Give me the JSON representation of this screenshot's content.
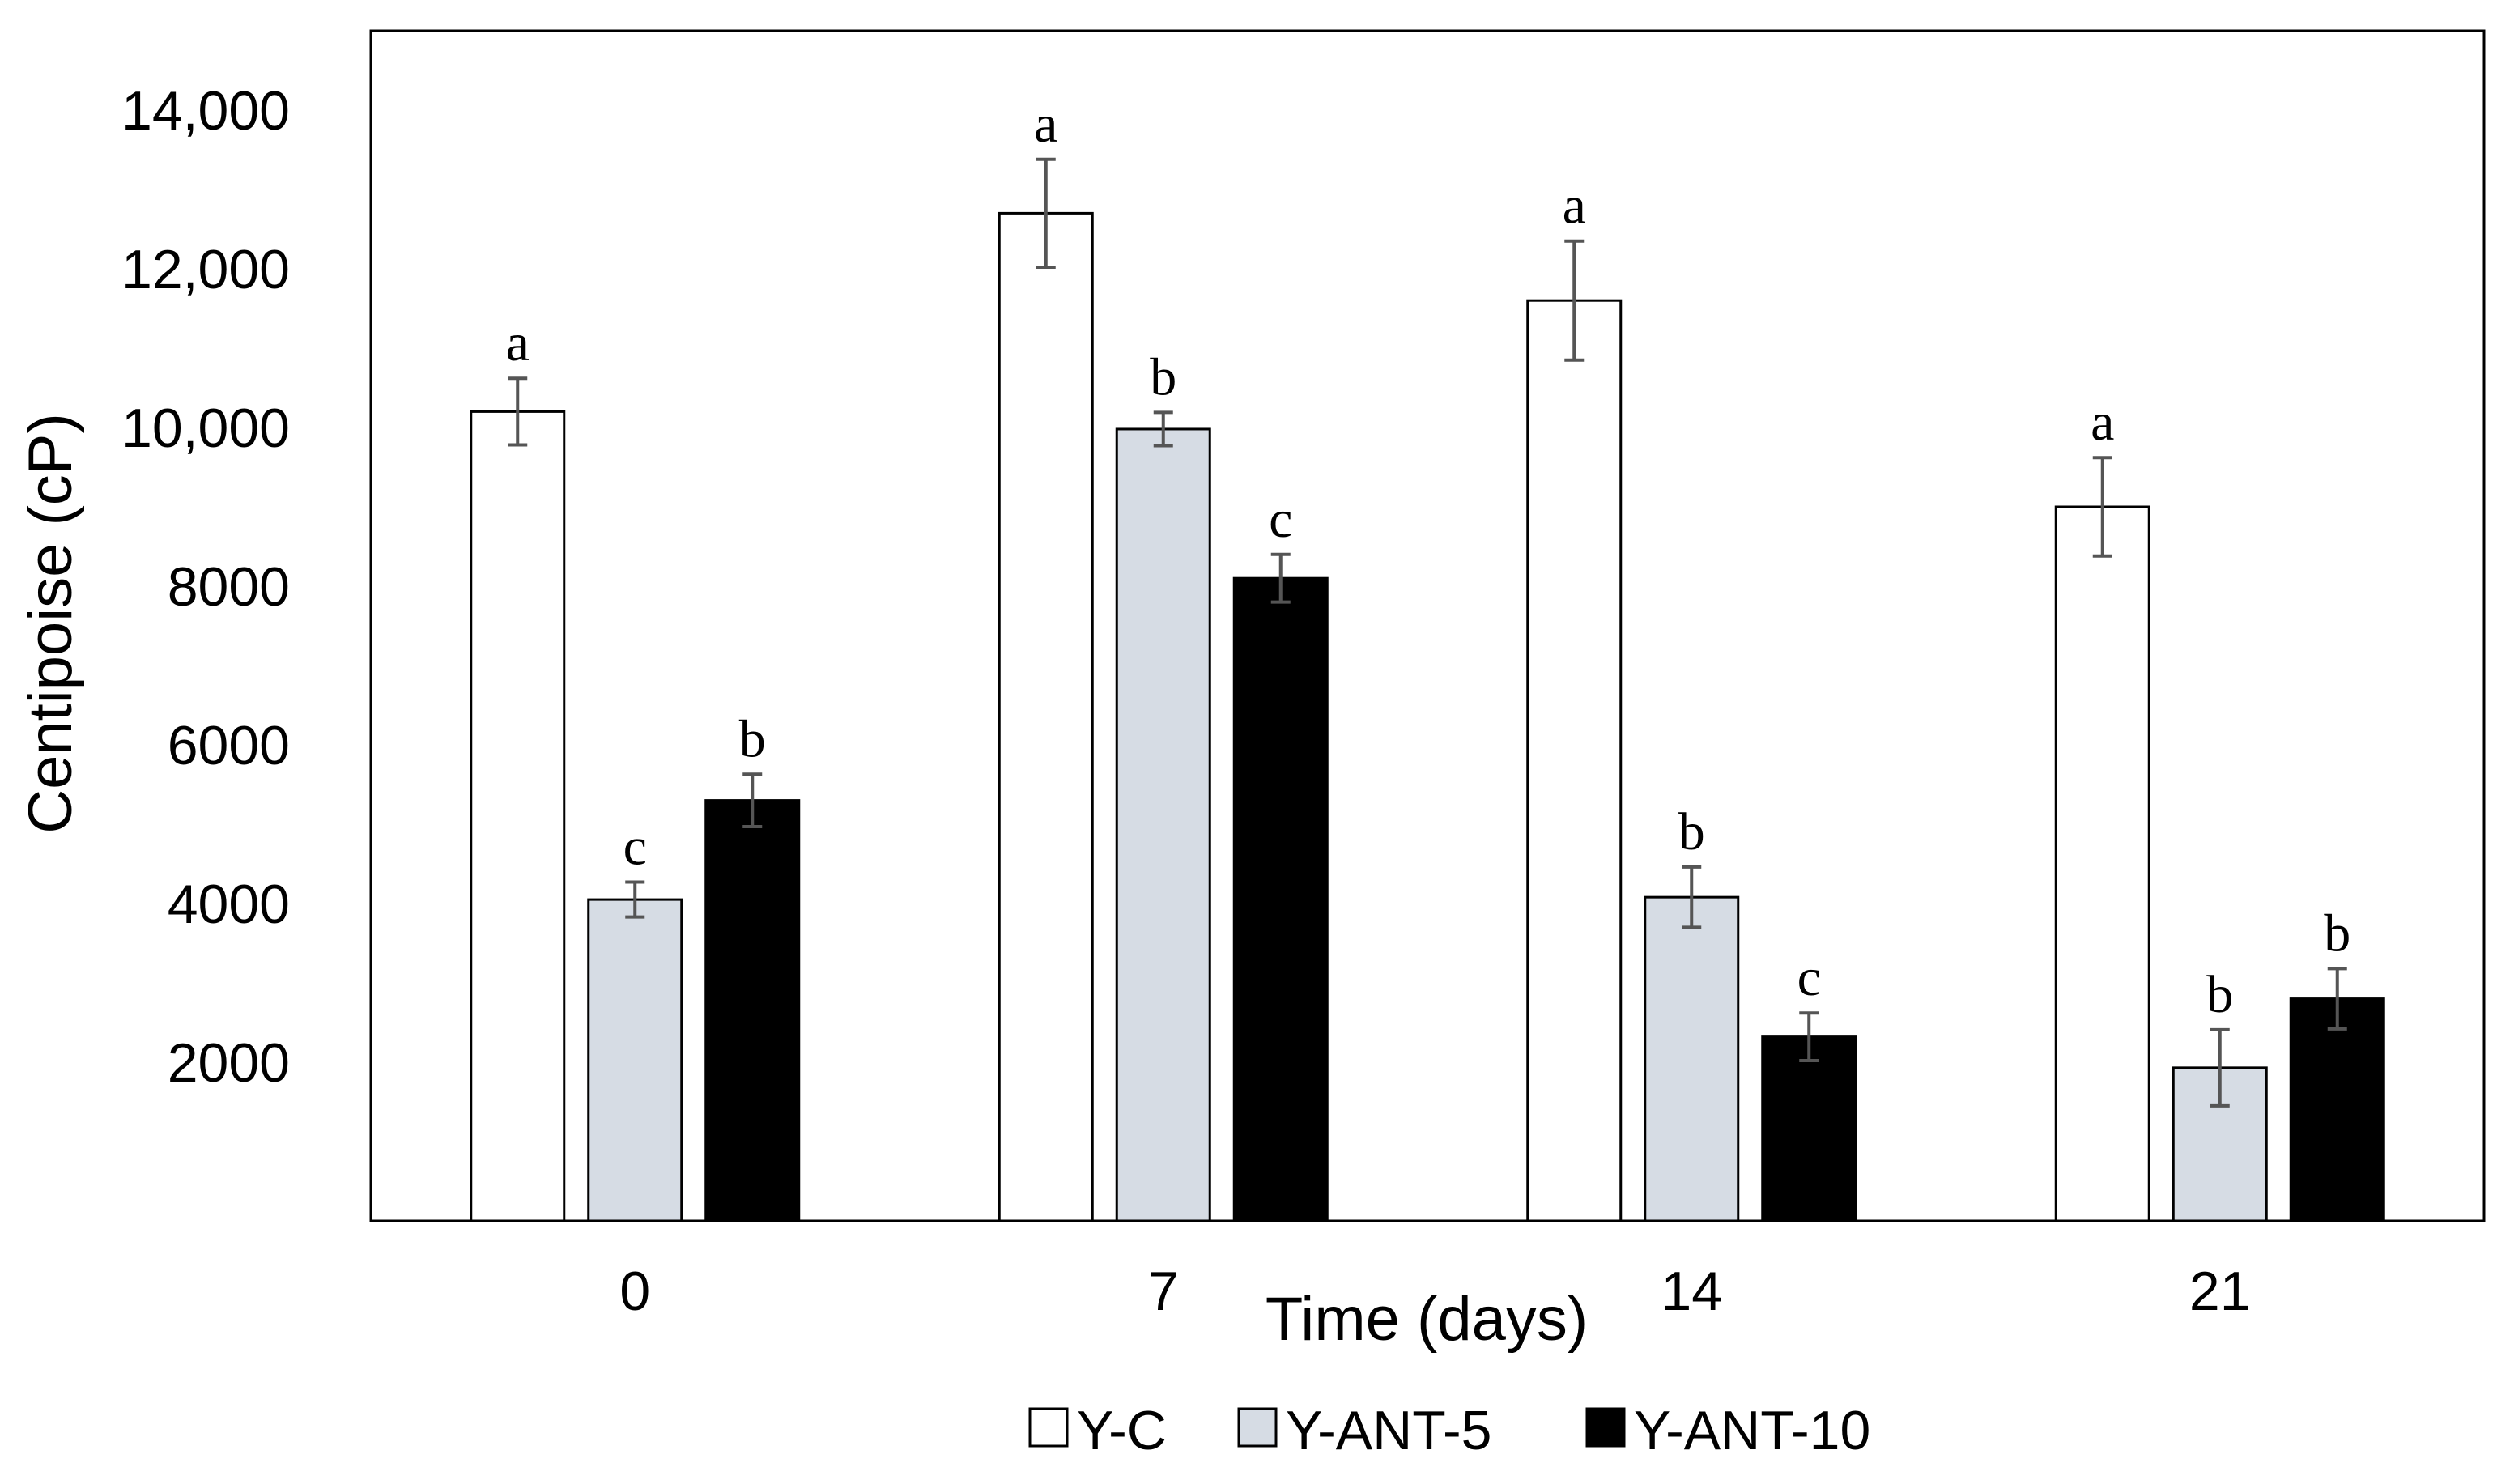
{
  "chart_data": {
    "type": "bar",
    "title": "",
    "xlabel": "Time (days)",
    "ylabel": "Centipoise (cP)",
    "categories": [
      "0",
      "7",
      "14",
      "21"
    ],
    "ylim": [
      0,
      15000
    ],
    "yticks": [
      2000,
      4000,
      6000,
      8000,
      10000,
      12000,
      14000
    ],
    "ytick_labels": [
      "2000",
      "4000",
      "6000",
      "8000",
      "10,000",
      "12,000",
      "14,000"
    ],
    "grid": false,
    "legend_position": "bottom",
    "series": [
      {
        "name": "Y-C",
        "color": "#ffffff",
        "values": [
          10200,
          12700,
          11600,
          9000
        ],
        "errors": [
          420,
          680,
          750,
          620
        ],
        "letters": [
          "a",
          "a",
          "a",
          "a"
        ]
      },
      {
        "name": "Y-ANT-5",
        "color": "#d6dce4",
        "values": [
          4050,
          9980,
          4080,
          1930
        ],
        "errors": [
          220,
          210,
          380,
          480
        ],
        "letters": [
          "c",
          "b",
          "b",
          "b"
        ]
      },
      {
        "name": "Y-ANT-10",
        "color": "#000000",
        "values": [
          5300,
          8100,
          2320,
          2800
        ],
        "errors": [
          330,
          300,
          300,
          380
        ],
        "letters": [
          "b",
          "c",
          "c",
          "b"
        ]
      }
    ]
  }
}
